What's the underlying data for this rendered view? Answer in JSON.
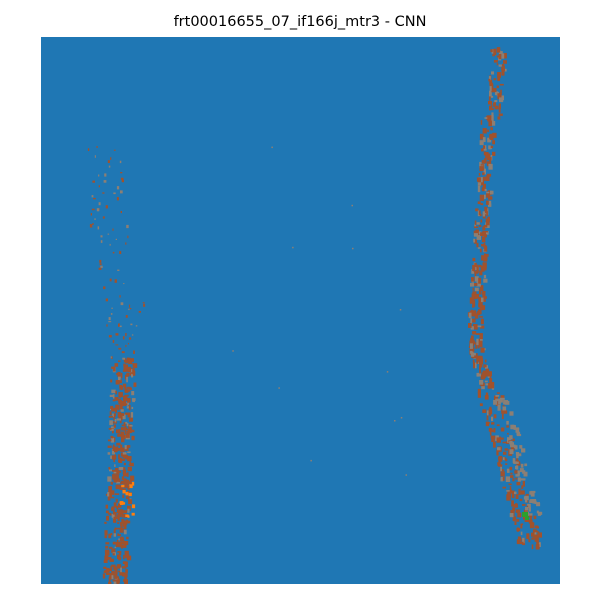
{
  "title": "frt00016655_07_if166j_mtr3 - CNN",
  "colors": {
    "background_class": "#1f77b4",
    "dominant_class": "#a0522d",
    "secondary_class": "#8c7f74",
    "orange_class": "#ff7f0e",
    "green_class": "#2ca02c"
  }
}
